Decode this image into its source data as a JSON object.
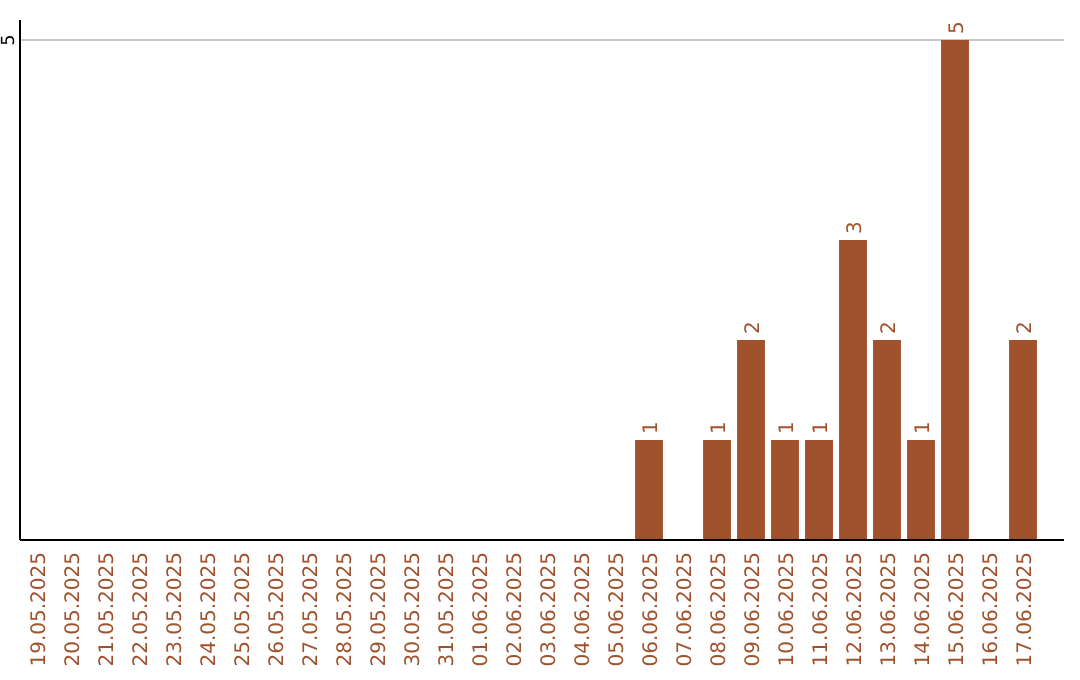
{
  "chart_data": {
    "type": "bar",
    "categories": [
      "19.05.2025",
      "20.05.2025",
      "21.05.2025",
      "22.05.2025",
      "23.05.2025",
      "24.05.2025",
      "25.05.2025",
      "26.05.2025",
      "27.05.2025",
      "28.05.2025",
      "29.05.2025",
      "30.05.2025",
      "31.05.2025",
      "01.06.2025",
      "02.06.2025",
      "03.06.2025",
      "04.06.2025",
      "05.06.2025",
      "06.06.2025",
      "07.06.2025",
      "08.06.2025",
      "09.06.2025",
      "10.06.2025",
      "11.06.2025",
      "12.06.2025",
      "13.06.2025",
      "14.06.2025",
      "15.06.2025",
      "16.06.2025",
      "17.06.2025"
    ],
    "values": [
      null,
      null,
      null,
      null,
      null,
      null,
      null,
      null,
      null,
      null,
      null,
      null,
      null,
      null,
      null,
      null,
      null,
      null,
      1,
      null,
      1,
      2,
      1,
      1,
      3,
      2,
      1,
      5,
      null,
      2
    ],
    "data_labels": true,
    "color": "#a0522d",
    "ylim": [
      0,
      5.2
    ],
    "ref_lines": [
      {
        "axis": "y",
        "value": 5,
        "label": "5",
        "color": "#c8c8c8"
      }
    ]
  }
}
